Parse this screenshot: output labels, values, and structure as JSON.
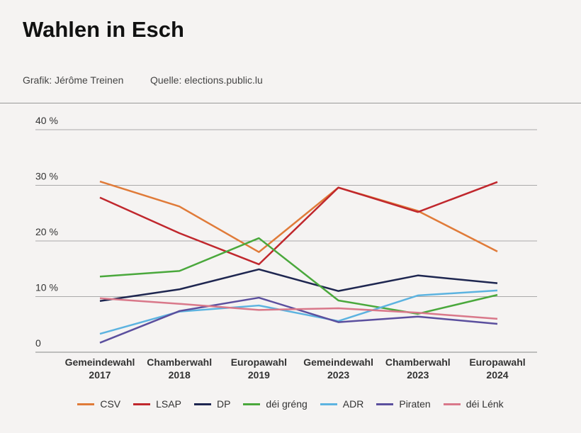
{
  "chart_data": {
    "type": "line",
    "title": "Wahlen in Esch",
    "byline": "Grafik: Jérôme Treinen",
    "source": "Quelle: elections.public.lu",
    "categories": [
      "Gemeindewahl 2017",
      "Chamberwahl 2018",
      "Europawahl 2019",
      "Gemeindewahl 2023",
      "Chamberwahl 2023",
      "Europawahl 2024"
    ],
    "series": [
      {
        "name": "CSV",
        "color": "#e07b39",
        "values": [
          30.7,
          26.2,
          18.0,
          29.6,
          25.4,
          18.1
        ]
      },
      {
        "name": "LSAP",
        "color": "#c0272d",
        "values": [
          27.8,
          21.4,
          15.8,
          29.6,
          25.2,
          30.6
        ]
      },
      {
        "name": "DP",
        "color": "#1e2650",
        "values": [
          9.2,
          11.3,
          14.9,
          11.0,
          13.8,
          12.4
        ]
      },
      {
        "name": "déi gréng",
        "color": "#4aa83c",
        "values": [
          13.6,
          14.6,
          20.5,
          9.3,
          6.9,
          10.3
        ]
      },
      {
        "name": "ADR",
        "color": "#5cb3e0",
        "values": [
          3.3,
          7.3,
          8.4,
          5.6,
          10.2,
          11.1
        ]
      },
      {
        "name": "Piraten",
        "color": "#5b4f9e",
        "values": [
          1.7,
          7.4,
          9.8,
          5.4,
          6.4,
          5.1
        ]
      },
      {
        "name": "déi Lénk",
        "color": "#d9788a",
        "values": [
          9.7,
          8.7,
          7.6,
          7.9,
          7.1,
          6.0
        ]
      }
    ],
    "ylim": [
      0,
      40
    ],
    "yticks": [
      0,
      {
        "value": 10,
        "label": "10 %"
      },
      {
        "value": 20,
        "label": "20 %"
      },
      {
        "value": 30,
        "label": "30 %"
      },
      {
        "value": 40,
        "label": "40 %"
      }
    ],
    "grid": true,
    "legend": "bottom"
  }
}
